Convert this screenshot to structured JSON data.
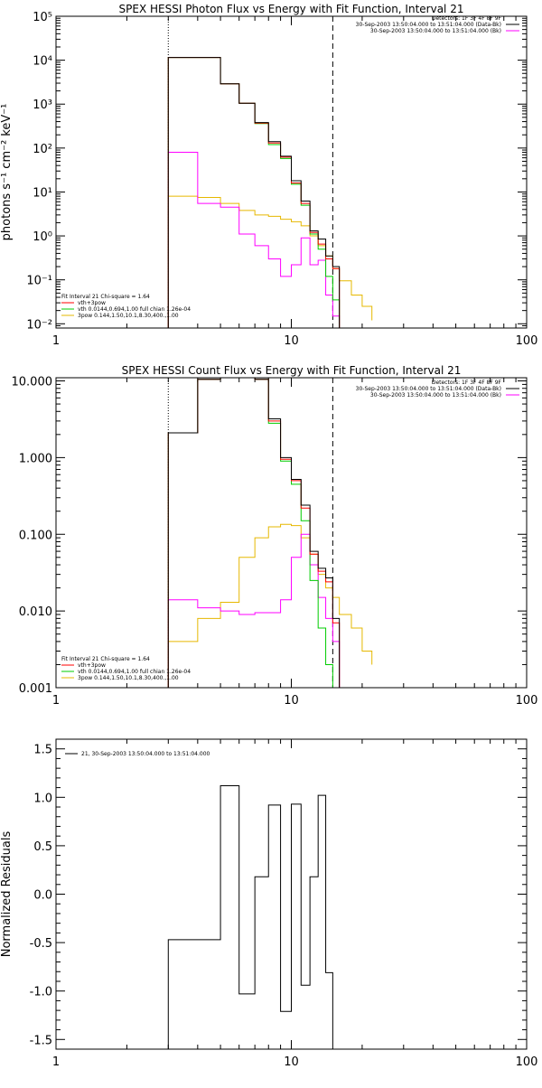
{
  "colors": {
    "data": "#000000",
    "vth_spow": "#ff0000",
    "vth": "#00cc00",
    "spow": "#ff00ff",
    "bk": "#e6b800"
  },
  "chart_data": [
    {
      "type": "line",
      "title": "SPEX HESSI Photon Flux vs Energy with Fit Function, Interval 21",
      "xlabel": "",
      "ylabel": "photons s⁻¹ cm⁻² keV⁻¹",
      "xscale": "log",
      "yscale": "log",
      "xlim": [
        1,
        100
      ],
      "ylim": [
        0.008,
        100000
      ],
      "xtick_labels": [
        "1",
        "10",
        "100"
      ],
      "ytick_labels": [
        "10⁻²",
        "10⁻¹",
        "10⁰",
        "10¹",
        "10²",
        "10³",
        "10⁴",
        "10⁵"
      ],
      "vlines": [
        {
          "x": 3.0,
          "style": "dotted"
        },
        {
          "x": 15.0,
          "style": "dashed"
        }
      ],
      "legend_top": [
        "Detectors: 1F 3F 4F 8F 9F",
        "30-Sep-2003 13:50:04.000 to 13:51:04.000 (Data-Bk)",
        "30-Sep-2003 13:50:04.000 to 13:51:04.000 (Bk)"
      ],
      "legend_bottom": [
        "Fit Interval 21    Chi-square = 1.64",
        "vth+3pow",
        "vth 0.0144,0.694,1.00  full chian 1.26e-04",
        "3pow 0.144,1.50,10.1,8.30,400.,1.00"
      ],
      "x_edges": [
        3.0,
        4.0,
        5.0,
        6.0,
        7.0,
        8.0,
        9.0,
        10.0,
        11.0,
        12.0,
        13.0,
        14.0,
        15.0,
        16.0,
        18.0,
        20.0,
        22.0
      ],
      "series": [
        {
          "name": "Data-Bk",
          "color": "data",
          "values": [
            11500,
            11500,
            2900,
            1050,
            380,
            140,
            65,
            18,
            6.2,
            1.3,
            0.85,
            0.35,
            0.2
          ]
        },
        {
          "name": "vth+3pow",
          "color": "vth_spow",
          "values": [
            11500,
            11500,
            2900,
            1050,
            370,
            130,
            62,
            16,
            5.5,
            1.2,
            0.65,
            0.3,
            0.18
          ]
        },
        {
          "name": "vth",
          "color": "vth",
          "values": [
            11500,
            11500,
            2900,
            1050,
            360,
            120,
            58,
            15,
            5.0,
            1.1,
            0.5,
            0.12,
            0.035
          ]
        },
        {
          "name": "3pow",
          "color": "spow",
          "values": [
            80,
            5.5,
            4.5,
            1.1,
            0.6,
            0.3,
            0.12,
            0.22,
            0.9,
            0.22,
            0.28,
            0.045,
            0.015
          ]
        },
        {
          "name": "Bk",
          "color": "bk",
          "values": [
            8,
            7.5,
            5.5,
            3.8,
            3.0,
            2.8,
            2.4,
            2.1,
            1.7,
            1.0,
            0.6,
            0.35,
            0.18,
            0.095,
            0.045,
            0.025,
            0.012
          ]
        }
      ]
    },
    {
      "type": "line",
      "title": "SPEX HESSI Count Flux vs Energy with Fit Function, Interval 21",
      "xlabel": "",
      "ylabel": "",
      "xscale": "log",
      "yscale": "log",
      "xlim": [
        1,
        100
      ],
      "ylim": [
        0.001,
        11
      ],
      "xtick_labels": [
        "1",
        "10",
        "100"
      ],
      "ytick_labels": [
        "0.001",
        "0.010",
        "0.100",
        "1.000",
        "10.000"
      ],
      "vlines": [
        {
          "x": 3.0,
          "style": "dotted"
        },
        {
          "x": 15.0,
          "style": "dashed"
        }
      ],
      "legend_top": [
        "Detectors: 1F 3F 4F 8F 9F",
        "30-Sep-2003 13:50:04.000 to 13:51:04.000 (Data-Bk)",
        "30-Sep-2003 13:50:04.000 to 13:51:04.000 (Bk)"
      ],
      "legend_bottom": [
        "Fit Interval 21    Chi-square = 1.64",
        "vth+3pow",
        "vth 0.0144,0.694,1.00  full chian 1.26e-04",
        "3pow 0.144,1.50,10.1,8.30,400.,1.00"
      ],
      "x_edges": [
        3.0,
        4.0,
        5.0,
        6.0,
        7.0,
        8.0,
        9.0,
        10.0,
        11.0,
        12.0,
        13.0,
        14.0,
        15.0,
        16.0,
        18.0,
        20.0,
        22.0
      ],
      "series": [
        {
          "name": "Data-Bk",
          "color": "data",
          "values": [
            2.1,
            10.5,
            11,
            11,
            10.5,
            3.2,
            1.0,
            0.52,
            0.24,
            0.06,
            0.036,
            0.027,
            0.008
          ]
        },
        {
          "name": "vth+3pow",
          "color": "vth_spow",
          "values": [
            2.1,
            10.5,
            11,
            11,
            10.5,
            3.0,
            0.95,
            0.5,
            0.22,
            0.055,
            0.033,
            0.024,
            0.007
          ]
        },
        {
          "name": "vth",
          "color": "vth",
          "values": [
            2.1,
            10.5,
            11,
            11,
            10.5,
            2.8,
            0.9,
            0.45,
            0.15,
            0.025,
            0.006,
            0.002,
            0.001
          ]
        },
        {
          "name": "3pow",
          "color": "spow",
          "values": [
            0.014,
            0.011,
            0.01,
            0.009,
            0.0095,
            0.0095,
            0.014,
            0.05,
            0.1,
            0.04,
            0.015,
            0.008,
            0.004
          ]
        },
        {
          "name": "Bk",
          "color": "bk",
          "values": [
            0.004,
            0.008,
            0.013,
            0.05,
            0.09,
            0.125,
            0.135,
            0.13,
            0.09,
            0.055,
            0.03,
            0.02,
            0.015,
            0.009,
            0.006,
            0.003,
            0.002
          ]
        }
      ]
    },
    {
      "type": "line",
      "title": "",
      "xlabel": "",
      "ylabel": "Normalized Residuals",
      "xscale": "log",
      "yscale": "linear",
      "xlim": [
        1,
        100
      ],
      "ylim": [
        -1.6,
        1.6
      ],
      "xtick_labels": [
        "1",
        "10",
        "100"
      ],
      "ytick_labels": [
        "-1.5",
        "-1.0",
        "-0.5",
        "0.0",
        "0.5",
        "1.0",
        "1.5"
      ],
      "legend": [
        "21, 30-Sep-2003 13:50:04.000 to 13:51:04.000"
      ],
      "x_edges": [
        3.0,
        4.0,
        5.0,
        6.0,
        7.0,
        8.0,
        9.0,
        10.0,
        11.0,
        12.0,
        13.0,
        14.0,
        15.0
      ],
      "series": [
        {
          "name": "21",
          "color": "data",
          "values": [
            -0.47,
            -0.47,
            1.12,
            -1.03,
            0.18,
            0.92,
            -1.21,
            0.93,
            -0.94,
            0.18,
            1.02,
            -0.81
          ]
        }
      ]
    }
  ]
}
